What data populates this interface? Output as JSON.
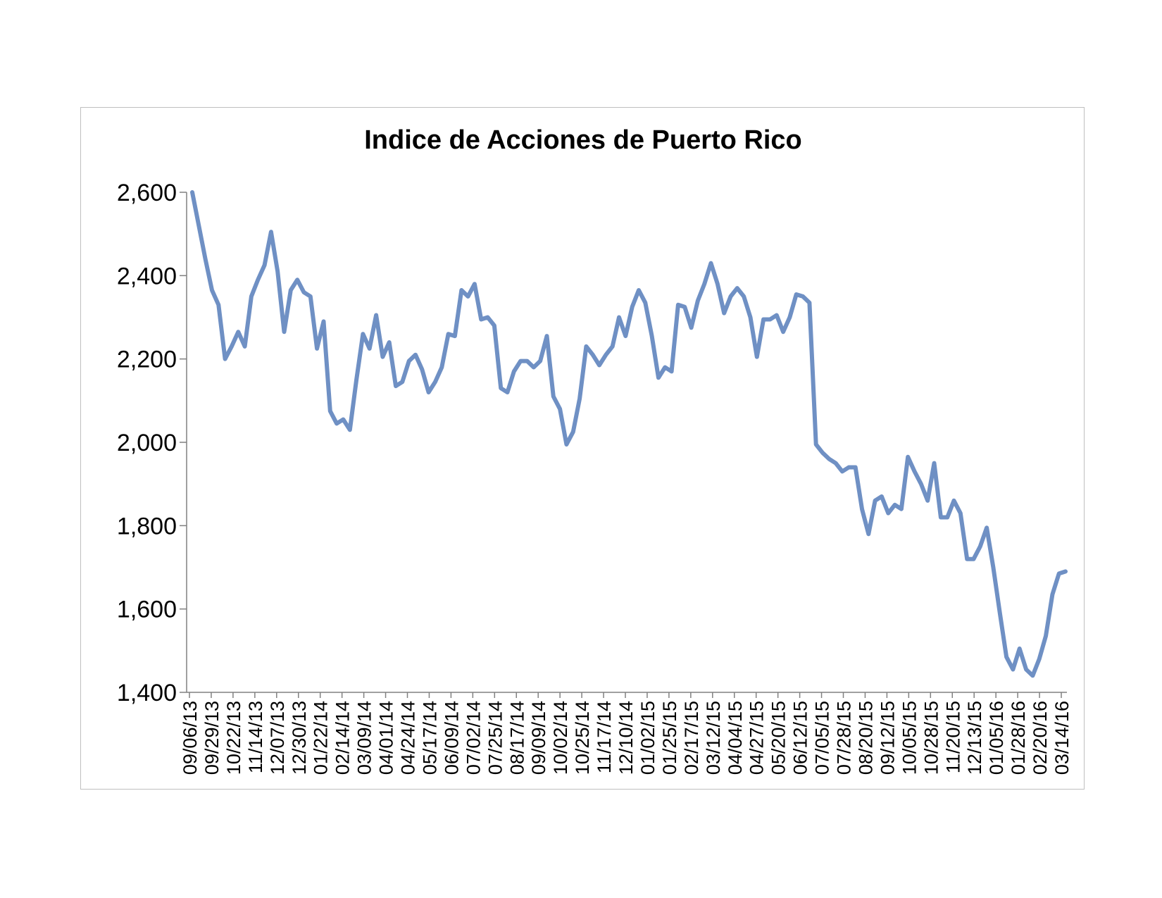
{
  "chart_data": {
    "type": "line",
    "title": "Indice de Acciones de Puerto Rico",
    "xlabel": "",
    "ylabel": "",
    "ylim": [
      1400,
      2600
    ],
    "yticks": [
      "2,600",
      "2,400",
      "2,200",
      "2,000",
      "1,800",
      "1,600",
      "1,400"
    ],
    "ytick_values": [
      2600,
      2400,
      2200,
      2000,
      1800,
      1600,
      1400
    ],
    "grid": false,
    "legend": "none",
    "line_color": "#6f90c4",
    "x_tick_labels": [
      "09/06/13",
      "09/29/13",
      "10/22/13",
      "11/14/13",
      "12/07/13",
      "12/30/13",
      "01/22/14",
      "02/14/14",
      "03/09/14",
      "04/01/14",
      "04/24/14",
      "05/17/14",
      "06/09/14",
      "07/02/14",
      "07/25/14",
      "08/17/14",
      "09/09/14",
      "10/02/14",
      "10/25/14",
      "11/17/14",
      "12/10/14",
      "01/02/15",
      "01/25/15",
      "02/17/15",
      "03/12/15",
      "04/04/15",
      "04/27/15",
      "05/20/15",
      "06/12/15",
      "07/05/15",
      "07/28/15",
      "08/20/15",
      "09/12/15",
      "10/05/15",
      "10/28/15",
      "11/20/15",
      "12/13/15",
      "01/05/16",
      "01/28/16",
      "02/20/16",
      "03/14/16"
    ],
    "series": [
      {
        "values": [
          2600,
          2520,
          2440,
          2365,
          2330,
          2200,
          2230,
          2265,
          2230,
          2350,
          2390,
          2425,
          2505,
          2410,
          2265,
          2365,
          2390,
          2360,
          2350,
          2225,
          2290,
          2075,
          2045,
          2055,
          2030,
          2150,
          2260,
          2225,
          2305,
          2205,
          2240,
          2135,
          2145,
          2195,
          2210,
          2175,
          2120,
          2145,
          2180,
          2260,
          2255,
          2365,
          2350,
          2380,
          2295,
          2300,
          2280,
          2130,
          2120,
          2170,
          2195,
          2195,
          2180,
          2195,
          2255,
          2110,
          2080,
          1995,
          2025,
          2105,
          2230,
          2210,
          2185,
          2210,
          2230,
          2300,
          2255,
          2325,
          2365,
          2335,
          2255,
          2155,
          2180,
          2170,
          2330,
          2325,
          2275,
          2340,
          2380,
          2430,
          2380,
          2310,
          2350,
          2370,
          2350,
          2300,
          2205,
          2295,
          2295,
          2305,
          2265,
          2300,
          2355,
          2350,
          2335,
          1995,
          1975,
          1960,
          1950,
          1930,
          1940,
          1940,
          1840,
          1780,
          1860,
          1870,
          1830,
          1850,
          1840,
          1965,
          1930,
          1900,
          1860,
          1950,
          1820,
          1820,
          1860,
          1830,
          1720,
          1720,
          1750,
          1795,
          1700,
          1590,
          1485,
          1455,
          1505,
          1455,
          1440,
          1480,
          1535,
          1635,
          1685,
          1690
        ]
      }
    ]
  }
}
